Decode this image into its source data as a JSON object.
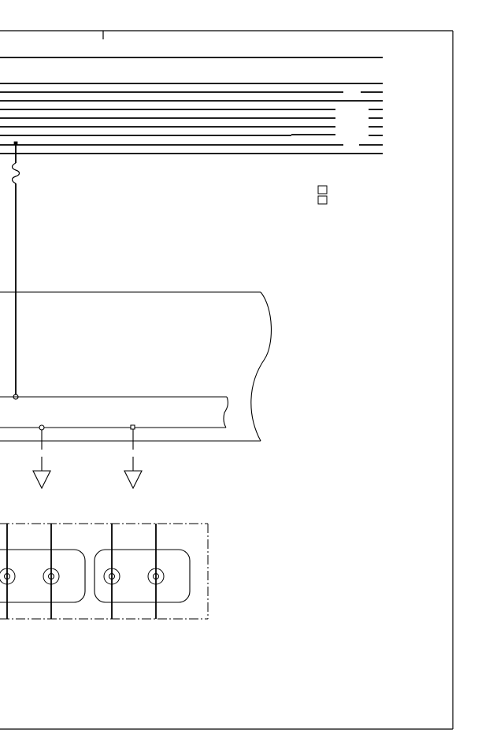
{
  "diagram": {
    "kind": "wiring-schematic",
    "colors": {
      "line": "#000000",
      "background": "#ffffff"
    },
    "bus_wire_count": 10,
    "ground_symbol_count": 2,
    "connector_count": 2,
    "pins_per_connector": 2,
    "legend_box_count": 2
  }
}
